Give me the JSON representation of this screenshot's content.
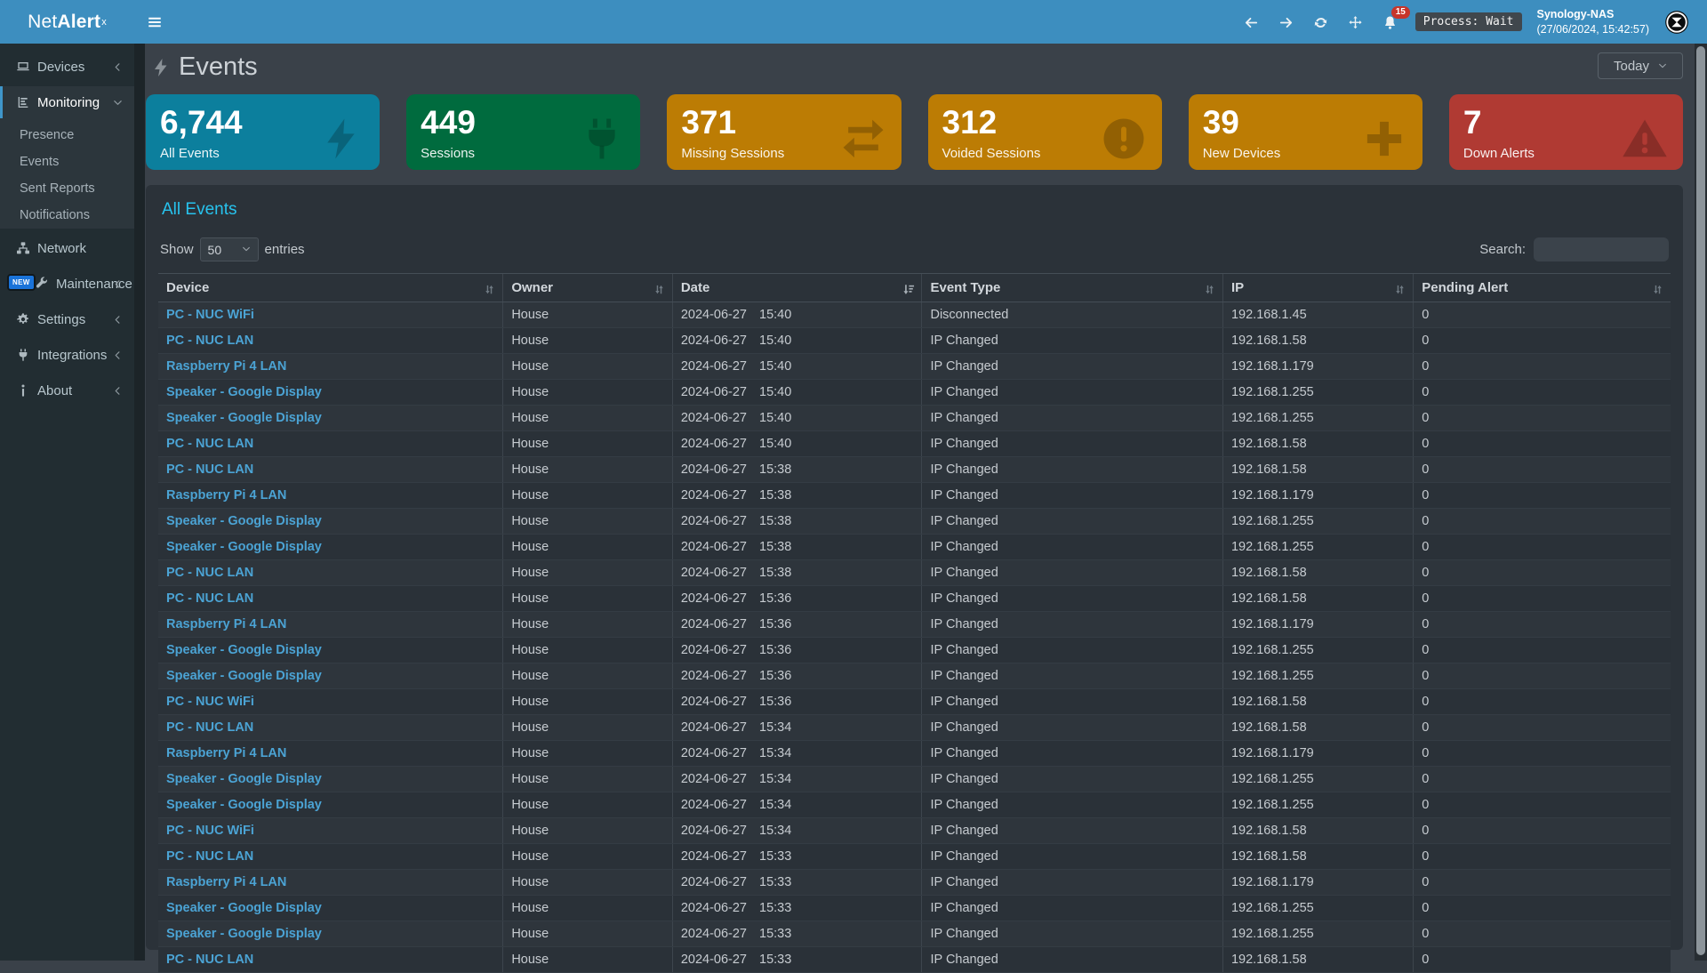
{
  "app": {
    "logo_net": "Net",
    "logo_alert": "Alert",
    "logo_sup": "x"
  },
  "topbar": {
    "bell_count": "15",
    "process_badge": "Process: Wait",
    "host": "Synology-NAS",
    "host_time": "(27/06/2024, 15:42:57)"
  },
  "sidebar": {
    "devices_label": "Devices",
    "monitoring_label": "Monitoring",
    "submenu": [
      "Presence",
      "Events",
      "Sent Reports",
      "Notifications"
    ],
    "network_label": "Network",
    "maintenance_label": "Maintenance",
    "maintenance_badge": "NEW",
    "settings_label": "Settings",
    "integrations_label": "Integrations",
    "about_label": "About"
  },
  "page": {
    "title": "Events",
    "range_selector": "Today"
  },
  "cards": [
    {
      "value": "6,744",
      "label": "All Events",
      "bg": "#0c7f9d"
    },
    {
      "value": "449",
      "label": "Sessions",
      "bg": "#006b3e"
    },
    {
      "value": "371",
      "label": "Missing Sessions",
      "bg": "#bc7c04"
    },
    {
      "value": "312",
      "label": "Voided Sessions",
      "bg": "#bc7c04"
    },
    {
      "value": "39",
      "label": "New Devices",
      "bg": "#bc7c04"
    },
    {
      "value": "7",
      "label": "Down Alerts",
      "bg": "#b03a33"
    }
  ],
  "table": {
    "section_title": "All Events",
    "show_label": "Show",
    "page_length": "50",
    "entries_label": "entries",
    "search_label": "Search:",
    "columns": [
      "Device",
      "Owner",
      "Date",
      "Event Type",
      "IP",
      "Pending Alert"
    ],
    "rows": [
      {
        "device": "PC - NUC WiFi",
        "owner": "House",
        "date": "2024-06-27",
        "time": "15:40",
        "event": "Disconnected",
        "ip": "192.168.1.45",
        "pending": "0"
      },
      {
        "device": "PC - NUC LAN",
        "owner": "House",
        "date": "2024-06-27",
        "time": "15:40",
        "event": "IP Changed",
        "ip": "192.168.1.58",
        "pending": "0"
      },
      {
        "device": "Raspberry Pi 4 LAN",
        "owner": "House",
        "date": "2024-06-27",
        "time": "15:40",
        "event": "IP Changed",
        "ip": "192.168.1.179",
        "pending": "0"
      },
      {
        "device": "Speaker - Google Display",
        "owner": "House",
        "date": "2024-06-27",
        "time": "15:40",
        "event": "IP Changed",
        "ip": "192.168.1.255",
        "pending": "0"
      },
      {
        "device": "Speaker - Google Display",
        "owner": "House",
        "date": "2024-06-27",
        "time": "15:40",
        "event": "IP Changed",
        "ip": "192.168.1.255",
        "pending": "0"
      },
      {
        "device": "PC - NUC LAN",
        "owner": "House",
        "date": "2024-06-27",
        "time": "15:40",
        "event": "IP Changed",
        "ip": "192.168.1.58",
        "pending": "0"
      },
      {
        "device": "PC - NUC LAN",
        "owner": "House",
        "date": "2024-06-27",
        "time": "15:38",
        "event": "IP Changed",
        "ip": "192.168.1.58",
        "pending": "0"
      },
      {
        "device": "Raspberry Pi 4 LAN",
        "owner": "House",
        "date": "2024-06-27",
        "time": "15:38",
        "event": "IP Changed",
        "ip": "192.168.1.179",
        "pending": "0"
      },
      {
        "device": "Speaker - Google Display",
        "owner": "House",
        "date": "2024-06-27",
        "time": "15:38",
        "event": "IP Changed",
        "ip": "192.168.1.255",
        "pending": "0"
      },
      {
        "device": "Speaker - Google Display",
        "owner": "House",
        "date": "2024-06-27",
        "time": "15:38",
        "event": "IP Changed",
        "ip": "192.168.1.255",
        "pending": "0"
      },
      {
        "device": "PC - NUC LAN",
        "owner": "House",
        "date": "2024-06-27",
        "time": "15:38",
        "event": "IP Changed",
        "ip": "192.168.1.58",
        "pending": "0"
      },
      {
        "device": "PC - NUC LAN",
        "owner": "House",
        "date": "2024-06-27",
        "time": "15:36",
        "event": "IP Changed",
        "ip": "192.168.1.58",
        "pending": "0"
      },
      {
        "device": "Raspberry Pi 4 LAN",
        "owner": "House",
        "date": "2024-06-27",
        "time": "15:36",
        "event": "IP Changed",
        "ip": "192.168.1.179",
        "pending": "0"
      },
      {
        "device": "Speaker - Google Display",
        "owner": "House",
        "date": "2024-06-27",
        "time": "15:36",
        "event": "IP Changed",
        "ip": "192.168.1.255",
        "pending": "0"
      },
      {
        "device": "Speaker - Google Display",
        "owner": "House",
        "date": "2024-06-27",
        "time": "15:36",
        "event": "IP Changed",
        "ip": "192.168.1.255",
        "pending": "0"
      },
      {
        "device": "PC - NUC WiFi",
        "owner": "House",
        "date": "2024-06-27",
        "time": "15:36",
        "event": "IP Changed",
        "ip": "192.168.1.58",
        "pending": "0"
      },
      {
        "device": "PC - NUC LAN",
        "owner": "House",
        "date": "2024-06-27",
        "time": "15:34",
        "event": "IP Changed",
        "ip": "192.168.1.58",
        "pending": "0"
      },
      {
        "device": "Raspberry Pi 4 LAN",
        "owner": "House",
        "date": "2024-06-27",
        "time": "15:34",
        "event": "IP Changed",
        "ip": "192.168.1.179",
        "pending": "0"
      },
      {
        "device": "Speaker - Google Display",
        "owner": "House",
        "date": "2024-06-27",
        "time": "15:34",
        "event": "IP Changed",
        "ip": "192.168.1.255",
        "pending": "0"
      },
      {
        "device": "Speaker - Google Display",
        "owner": "House",
        "date": "2024-06-27",
        "time": "15:34",
        "event": "IP Changed",
        "ip": "192.168.1.255",
        "pending": "0"
      },
      {
        "device": "PC - NUC WiFi",
        "owner": "House",
        "date": "2024-06-27",
        "time": "15:34",
        "event": "IP Changed",
        "ip": "192.168.1.58",
        "pending": "0"
      },
      {
        "device": "PC - NUC LAN",
        "owner": "House",
        "date": "2024-06-27",
        "time": "15:33",
        "event": "IP Changed",
        "ip": "192.168.1.58",
        "pending": "0"
      },
      {
        "device": "Raspberry Pi 4 LAN",
        "owner": "House",
        "date": "2024-06-27",
        "time": "15:33",
        "event": "IP Changed",
        "ip": "192.168.1.179",
        "pending": "0"
      },
      {
        "device": "Speaker - Google Display",
        "owner": "House",
        "date": "2024-06-27",
        "time": "15:33",
        "event": "IP Changed",
        "ip": "192.168.1.255",
        "pending": "0"
      },
      {
        "device": "Speaker - Google Display",
        "owner": "House",
        "date": "2024-06-27",
        "time": "15:33",
        "event": "IP Changed",
        "ip": "192.168.1.255",
        "pending": "0"
      },
      {
        "device": "PC - NUC LAN",
        "owner": "House",
        "date": "2024-06-27",
        "time": "15:33",
        "event": "IP Changed",
        "ip": "192.168.1.58",
        "pending": "0"
      }
    ]
  }
}
